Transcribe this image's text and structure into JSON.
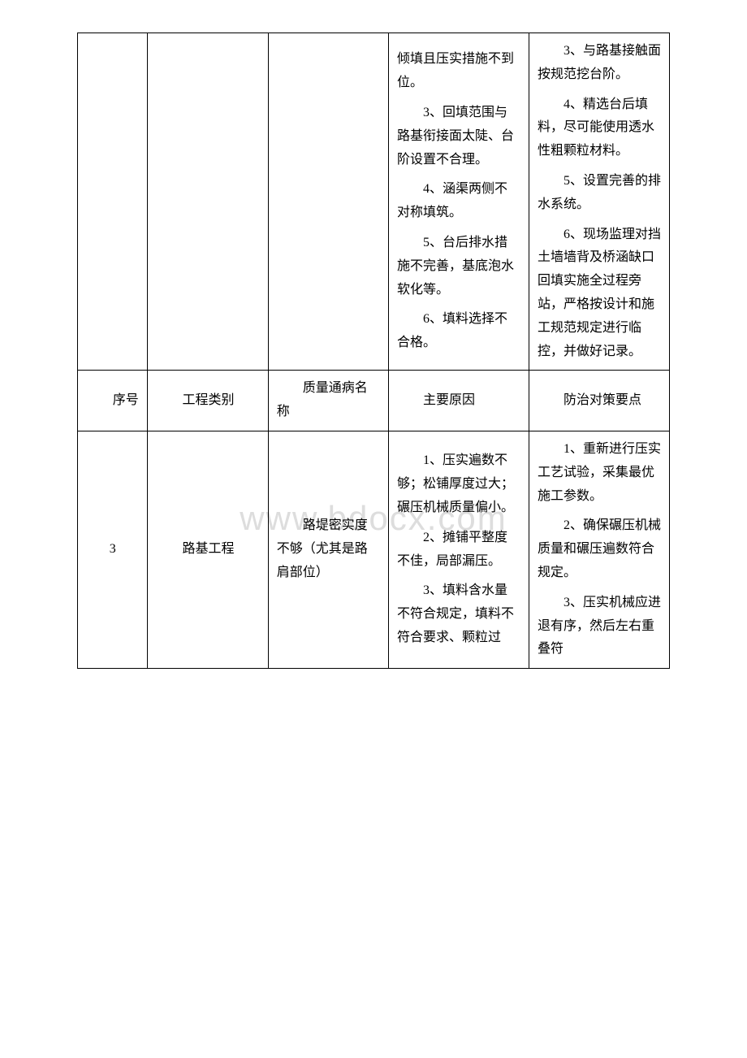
{
  "watermark": "www.bdocx.com",
  "rows": {
    "topRow": {
      "col4": {
        "items": [
          "倾填且压实措施不到位。",
          "3、回填范围与路基衔接面太陡、台阶设置不合理。",
          "4、涵渠两侧不对称填筑。",
          "5、台后排水措施不完善，基底泡水软化等。",
          "6、填料选择不合格。"
        ]
      },
      "col5": {
        "items": [
          "3、与路基接触面按规范挖台阶。",
          "4、精选台后填料，尽可能使用透水性粗颗粒材料。",
          "5、设置完善的排水系统。",
          "6、现场监理对挡土墙墙背及桥涵缺口回填实施全过程旁站，严格按设计和施工规范规定进行临控，并做好记录。"
        ]
      }
    },
    "headerRow": {
      "seq": "序号",
      "type": "工程类别",
      "name": "质量通病名称",
      "cause": "主要原因",
      "solution": "防治对策要点"
    },
    "dataRow": {
      "seq": "3",
      "type": "路基工程",
      "name": "路堤密实度不够（尤其是路肩部位）",
      "cause": {
        "items": [
          "1、压实遍数不够；松铺厚度过大；碾压机械质量偏小。",
          "2、摊铺平整度不佳，局部漏压。",
          "3、填料含水量不符合规定，填料不符合要求、颗粒过"
        ]
      },
      "solution": {
        "items": [
          "1、重新进行压实工艺试验，采集最优施工参数。",
          "2、确保碾压机械质量和碾压遍数符合规定。",
          "3、压实机械应进退有序，然后左右重叠符"
        ]
      }
    }
  }
}
